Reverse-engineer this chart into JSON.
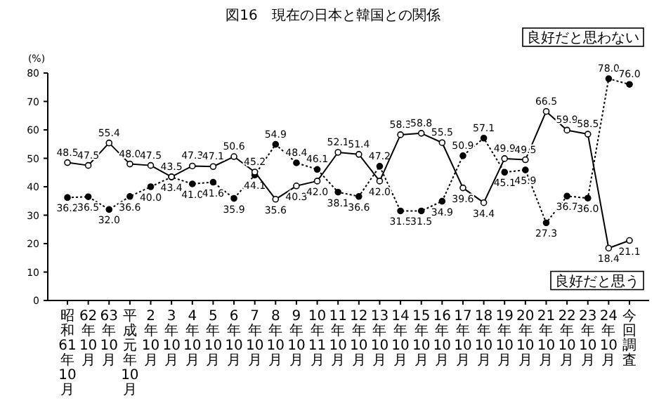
{
  "chart_data": {
    "type": "line",
    "title": "図16　現在の日本と韓国との関係",
    "ylabel": "(%)",
    "categories": [
      "昭和61年10月",
      "62年10月",
      "63年10月",
      "平成元年10月",
      "2年10月",
      "3年10月",
      "4年10月",
      "5年10月",
      "6年10月",
      "7年10月",
      "8年10月",
      "9年10月",
      "10年11月",
      "11年10月",
      "12年10月",
      "13年10月",
      "14年10月",
      "15年10月",
      "16年10月",
      "17年10月",
      "18年10月",
      "19年10月",
      "20年10月",
      "21年10月",
      "22年10月",
      "23年10月",
      "24年10月",
      "今回調査"
    ],
    "series": [
      {
        "name": "良好だと思わない",
        "color": "#000000",
        "marker": "circle",
        "line_style": "dotted",
        "values": [
          36.2,
          36.5,
          32.0,
          36.6,
          40.0,
          43.4,
          41.0,
          41.6,
          35.9,
          44.1,
          54.9,
          48.4,
          46.1,
          38.1,
          36.6,
          47.2,
          31.5,
          31.5,
          34.9,
          50.9,
          57.1,
          45.1,
          45.9,
          27.3,
          36.7,
          36.0,
          78.0,
          76.0
        ],
        "value_labels": [
          "36.2",
          "36.5",
          "32.0",
          "36.6",
          "40.0",
          "43.4",
          "41.0",
          "41.6",
          "35.9",
          "44.1",
          "54.9",
          "48.4",
          "46.1",
          "38.1",
          "36.6",
          "47.2",
          "31.5",
          "31.5",
          "34.9",
          "50.9",
          "57.1",
          "45.1",
          "45.9",
          "27.3",
          "36.7",
          "36.0",
          "78.0",
          "76.0"
        ]
      },
      {
        "name": "良好だと思う",
        "color": "#000000",
        "marker": "circle",
        "line_style": "solid",
        "values": [
          48.5,
          47.5,
          55.4,
          48.0,
          47.5,
          43.5,
          47.3,
          47.1,
          50.6,
          45.2,
          35.6,
          40.3,
          42.0,
          52.1,
          51.4,
          42.0,
          58.3,
          58.8,
          55.5,
          39.6,
          34.4,
          49.9,
          49.5,
          66.5,
          59.9,
          58.5,
          18.4,
          21.1
        ],
        "value_labels": [
          "48.5",
          "47.5",
          "55.4",
          "48.0",
          "47.5",
          "43.5",
          "47.3",
          "47.1",
          "50.6",
          "45.2",
          "35.6",
          "40.3",
          "42.0",
          "52.1",
          "51.4",
          "42.0",
          "58.3",
          "58.8",
          "55.5",
          "39.6",
          "34.4",
          "49.9",
          "49.5",
          "66.5",
          "59.9",
          "58.5",
          "18.4",
          "21.1"
        ]
      }
    ],
    "ylim": [
      0,
      80
    ],
    "yticks": [
      0,
      10,
      20,
      30,
      40,
      50,
      60,
      70,
      80
    ],
    "grid": false
  }
}
